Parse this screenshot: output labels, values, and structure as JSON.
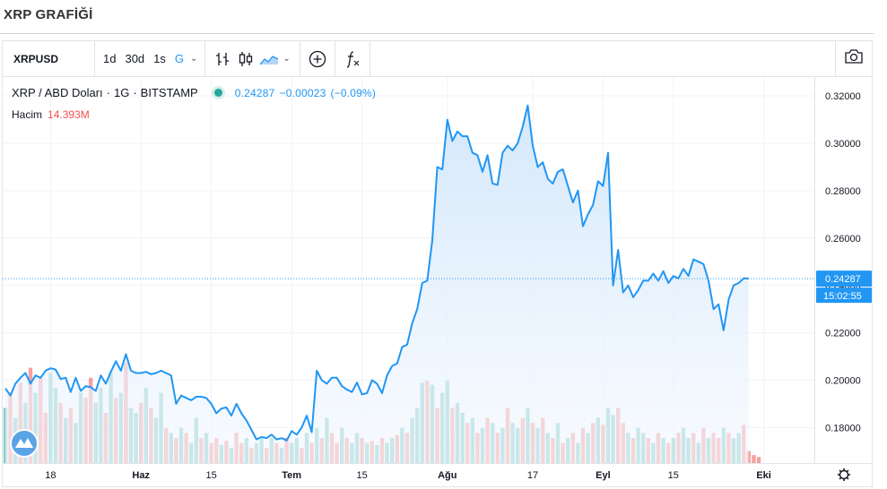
{
  "page": {
    "title": "XRP GRAFİĞİ"
  },
  "toolbar": {
    "symbol": "XRPUSD",
    "intervals": [
      {
        "label": "1d",
        "active": false
      },
      {
        "label": "30d",
        "active": false
      },
      {
        "label": "1s",
        "active": false
      },
      {
        "label": "G",
        "active": true
      }
    ],
    "interval_caret": "⌄",
    "chart_style_caret": "⌄",
    "icons": [
      "bars-chart-icon",
      "candles-chart-icon",
      "area-chart-icon",
      "add-indicator-icon",
      "fx-indicator-icon",
      "camera-icon"
    ]
  },
  "legend": {
    "pair": "XRP / ABD Doları",
    "interval": "1G",
    "exchange": "BITSTAMP",
    "last": "0.24287",
    "change": "−0.00023",
    "change_pct": "(−0.09%)",
    "volume_label": "Hacim",
    "volume_value": "14.393M"
  },
  "colors": {
    "line": "#2196f3",
    "area_top": "#cfe5fb",
    "area_bottom": "#f3f8fe",
    "vol_up": "#26a69a",
    "vol_down": "#ef5350",
    "label_bg": "#2196f3"
  },
  "price_label": {
    "value": "0.24287",
    "time": "15:02:55"
  },
  "settings_icon": "gear-icon",
  "chart_data": {
    "type": "area",
    "title": "XRP / ABD Doları",
    "ylim": [
      0.165,
      0.328
    ],
    "yticks": [
      "0.32000",
      "0.30000",
      "0.28000",
      "0.26000",
      "0.24000",
      "0.22000",
      "0.20000",
      "0.18000"
    ],
    "ytick_values": [
      0.32,
      0.3,
      0.28,
      0.26,
      0.24,
      0.22,
      0.2,
      0.18
    ],
    "xticks": [
      {
        "label": "18",
        "index": 9,
        "major": false
      },
      {
        "label": "Haz",
        "index": 27,
        "major": true
      },
      {
        "label": "15",
        "index": 41,
        "major": false
      },
      {
        "label": "Tem",
        "index": 57,
        "major": true
      },
      {
        "label": "15",
        "index": 71,
        "major": false
      },
      {
        "label": "Ağu",
        "index": 88,
        "major": true
      },
      {
        "label": "17",
        "index": 105,
        "major": false
      },
      {
        "label": "Eyl",
        "index": 119,
        "major": true
      },
      {
        "label": "15",
        "index": 133,
        "major": false
      },
      {
        "label": "Eki",
        "index": 151,
        "major": true
      }
    ],
    "series": [
      {
        "values": [
          0.1965,
          0.1935,
          0.1985,
          0.201,
          0.203,
          0.1985,
          0.202,
          0.201,
          0.204,
          0.205,
          0.2045,
          0.2005,
          0.201,
          0.195,
          0.201,
          0.1955,
          0.1975,
          0.197,
          0.1955,
          0.202,
          0.1985,
          0.2035,
          0.208,
          0.204,
          0.211,
          0.204,
          0.203,
          0.203,
          0.2035,
          0.2025,
          0.203,
          0.204,
          0.203,
          0.202,
          0.19,
          0.1935,
          0.1925,
          0.1915,
          0.193,
          0.193,
          0.1925,
          0.19,
          0.186,
          0.188,
          0.1885,
          0.185,
          0.19,
          0.186,
          0.183,
          0.179,
          0.175,
          0.176,
          0.1755,
          0.177,
          0.175,
          0.1755,
          0.1745,
          0.1785,
          0.177,
          0.18,
          0.185,
          0.178,
          0.204,
          0.2,
          0.1985,
          0.201,
          0.201,
          0.1975,
          0.196,
          0.195,
          0.199,
          0.194,
          0.1945,
          0.2,
          0.1985,
          0.1945,
          0.202,
          0.206,
          0.207,
          0.214,
          0.215,
          0.224,
          0.23,
          0.241,
          0.242,
          0.259,
          0.29,
          0.289,
          0.31,
          0.301,
          0.305,
          0.303,
          0.303,
          0.296,
          0.295,
          0.288,
          0.295,
          0.283,
          0.2825,
          0.296,
          0.299,
          0.297,
          0.3,
          0.307,
          0.316,
          0.299,
          0.29,
          0.292,
          0.285,
          0.283,
          0.288,
          0.289,
          0.282,
          0.275,
          0.28,
          0.265,
          0.27,
          0.274,
          0.284,
          0.282,
          0.296,
          0.24,
          0.255,
          0.237,
          0.24,
          0.235,
          0.238,
          0.242,
          0.242,
          0.245,
          0.242,
          0.246,
          0.241,
          0.244,
          0.243,
          0.247,
          0.244,
          0.251,
          0.25,
          0.249,
          0.242,
          0.23,
          0.232,
          0.221,
          0.234,
          0.24,
          0.241,
          0.243,
          0.2429
        ]
      }
    ],
    "volume": {
      "values": [
        0.55,
        0.7,
        0.45,
        0.8,
        0.6,
        0.95,
        0.7,
        0.85,
        0.5,
        0.9,
        0.75,
        0.6,
        0.45,
        0.55,
        0.4,
        0.7,
        0.65,
        0.85,
        0.6,
        0.75,
        0.5,
        0.9,
        0.65,
        0.7,
        1.0,
        0.55,
        0.5,
        0.6,
        0.75,
        0.55,
        0.45,
        0.7,
        0.35,
        0.3,
        0.25,
        0.35,
        0.3,
        0.2,
        0.45,
        0.25,
        0.3,
        0.2,
        0.25,
        0.18,
        0.22,
        0.15,
        0.3,
        0.2,
        0.25,
        0.15,
        0.2,
        0.25,
        0.15,
        0.25,
        0.2,
        0.15,
        0.25,
        0.2,
        0.25,
        0.15,
        0.3,
        0.2,
        0.35,
        0.25,
        0.45,
        0.3,
        0.2,
        0.35,
        0.25,
        0.2,
        0.3,
        0.25,
        0.2,
        0.22,
        0.18,
        0.25,
        0.2,
        0.25,
        0.28,
        0.35,
        0.3,
        0.45,
        0.55,
        0.8,
        0.82,
        0.78,
        0.55,
        0.7,
        0.82,
        0.55,
        0.6,
        0.5,
        0.4,
        0.45,
        0.3,
        0.35,
        0.45,
        0.4,
        0.3,
        0.35,
        0.55,
        0.4,
        0.35,
        0.45,
        0.55,
        0.4,
        0.35,
        0.45,
        0.3,
        0.25,
        0.4,
        0.2,
        0.25,
        0.3,
        0.2,
        0.35,
        0.3,
        0.4,
        0.45,
        0.38,
        0.55,
        0.48,
        0.55,
        0.4,
        0.3,
        0.25,
        0.35,
        0.3,
        0.25,
        0.2,
        0.3,
        0.25,
        0.2,
        0.25,
        0.3,
        0.35,
        0.25,
        0.3,
        0.2,
        0.35,
        0.25,
        0.3,
        0.25,
        0.35,
        0.3,
        0.25,
        0.3,
        0.38,
        0.12,
        0.08,
        0.06
      ],
      "up": [
        1,
        0,
        1,
        0,
        1,
        0,
        1,
        0,
        0,
        1,
        1,
        0,
        1,
        0,
        1,
        1,
        0,
        0,
        1,
        1,
        0,
        1,
        0,
        1,
        0,
        1,
        1,
        0,
        1,
        0,
        1,
        1,
        0,
        1,
        0,
        1,
        0,
        1,
        1,
        0,
        1,
        0,
        0,
        1,
        0,
        1,
        0,
        0,
        1,
        0,
        1,
        1,
        0,
        1,
        0,
        1,
        0,
        1,
        1,
        0,
        1,
        0,
        1,
        0,
        1,
        0,
        0,
        1,
        0,
        1,
        1,
        0,
        1,
        0,
        1,
        0,
        1,
        1,
        0,
        1,
        0,
        1,
        1,
        1,
        0,
        1,
        0,
        1,
        1,
        0,
        1,
        1,
        0,
        1,
        0,
        1,
        0,
        1,
        0,
        1,
        0,
        1,
        1,
        0,
        1,
        0,
        1,
        0,
        1,
        0,
        1,
        0,
        1,
        0,
        1,
        0,
        1,
        0,
        1,
        0,
        1,
        1,
        0,
        0,
        1,
        0,
        1,
        1,
        0,
        1,
        0,
        1,
        0,
        1,
        0,
        1,
        1,
        0,
        1,
        0,
        1,
        0,
        0,
        1,
        0,
        1,
        1,
        0,
        0
      ]
    },
    "grid": true,
    "legend": "top-left"
  }
}
